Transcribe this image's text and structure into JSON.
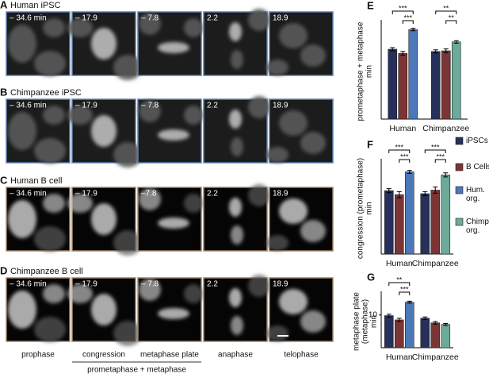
{
  "panels": [
    {
      "letter": "A",
      "title": "Human iPSC",
      "times": [
        "– 34.6 min",
        "– 17.9",
        "– 7.8",
        "2.2",
        "18.9"
      ]
    },
    {
      "letter": "B",
      "title": "Chimpanzee iPSC",
      "times": [
        "– 34.6 min",
        "– 17.9",
        "– 7.8",
        "2.2",
        "18.9"
      ]
    },
    {
      "letter": "C",
      "title": "Human B cell",
      "times": [
        "– 34.6 min",
        "– 17.9",
        "–7.8",
        "2.2",
        "18.9"
      ]
    },
    {
      "letter": "D",
      "title": "Chimpanzee B cell",
      "times": [
        "– 34.6 min",
        "– 17.9",
        "– 7.8",
        "2.2",
        "18.9"
      ]
    }
  ],
  "phases": [
    "prophase",
    "congression",
    "metaphase plate",
    "anaphase",
    "telophase"
  ],
  "phase_group": "prometaphase + metaphase",
  "chart_data": [
    {
      "type": "bar",
      "letter": "E",
      "ylabel": [
        "prometaphase + metaphase",
        "min"
      ],
      "categories": [
        "Human",
        "Chimpanzee"
      ],
      "ylim": [
        0,
        30
      ],
      "series": [
        {
          "name": "iPSCs",
          "color": "#26305a",
          "values": [
            22,
            21.3
          ],
          "errors": [
            0.5,
            0.5
          ]
        },
        {
          "name": "B Cells",
          "color": "#7b3535",
          "values": [
            20.7,
            21.5
          ],
          "errors": [
            0.6,
            0.6
          ]
        },
        {
          "name": "Hum. org.",
          "color": "#4a78b8",
          "values": [
            28.2,
            null
          ],
          "errors": [
            0.4,
            null
          ]
        },
        {
          "name": "Chimp. org.",
          "color": "#6caa9a",
          "values": [
            null,
            24.3
          ],
          "errors": [
            null,
            0.4
          ]
        }
      ],
      "significance": [
        [
          "***",
          "***"
        ],
        [
          "**",
          "**"
        ]
      ]
    },
    {
      "type": "bar",
      "letter": "F",
      "ylabel": [
        "congression (prometaphase)",
        "min"
      ],
      "categories": [
        "Human",
        "Chimpanzee"
      ],
      "ylim": [
        0,
        18
      ],
      "series": [
        {
          "name": "iPSCs",
          "color": "#26305a",
          "values": [
            12.5,
            11.9
          ],
          "errors": [
            0.4,
            0.4
          ]
        },
        {
          "name": "B Cells",
          "color": "#7b3535",
          "values": [
            11.7,
            12.6
          ],
          "errors": [
            0.6,
            0.6
          ]
        },
        {
          "name": "Hum. org.",
          "color": "#4a78b8",
          "values": [
            16.2,
            null
          ],
          "errors": [
            0.3,
            null
          ]
        },
        {
          "name": "Chimp. org.",
          "color": "#6caa9a",
          "values": [
            null,
            15.6
          ],
          "errors": [
            null,
            0.4
          ]
        }
      ],
      "significance": [
        [
          "***",
          "***"
        ],
        [
          "***",
          "***"
        ]
      ],
      "legend": true
    },
    {
      "type": "bar",
      "letter": "G",
      "ylabel": [
        "metaphase plate",
        "(metaphase)",
        "min"
      ],
      "categories": [
        "Human",
        "Chimpanzee"
      ],
      "ylim": [
        0,
        16
      ],
      "yticks": [
        10
      ],
      "series": [
        {
          "name": "iPSCs",
          "color": "#26305a",
          "values": [
            9.8,
            9
          ],
          "errors": [
            0.4,
            0.4
          ]
        },
        {
          "name": "B Cells",
          "color": "#7b3535",
          "values": [
            8.5,
            7.6
          ],
          "errors": [
            0.5,
            0.4
          ]
        },
        {
          "name": "Hum. org.",
          "color": "#4a78b8",
          "values": [
            13.9,
            null
          ],
          "errors": [
            0.3,
            null
          ]
        },
        {
          "name": "Chimp. org.",
          "color": "#6caa9a",
          "values": [
            null,
            7.1
          ],
          "errors": [
            null,
            0.3
          ]
        }
      ],
      "significance": [
        [
          "**",
          "***"
        ],
        null
      ]
    }
  ]
}
